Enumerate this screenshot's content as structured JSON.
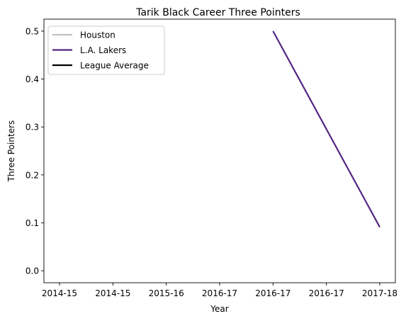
{
  "chart_data": {
    "type": "line",
    "title": "Tarik Black Career Three Pointers",
    "xlabel": "Year",
    "ylabel": "Three Pointers",
    "categories": [
      "2014-15",
      "2014-15",
      "2015-16",
      "2016-17",
      "2016-17",
      "2016-17",
      "2017-18"
    ],
    "ylim": [
      -0.025,
      0.525
    ],
    "yticks": [
      0.0,
      0.1,
      0.2,
      0.3,
      0.4,
      0.5
    ],
    "ytick_labels": [
      "0.0",
      "0.1",
      "0.2",
      "0.3",
      "0.4",
      "0.5"
    ],
    "grid": false,
    "legend_position": "top-left",
    "series": [
      {
        "name": "Houston",
        "color": "#c0c0c0",
        "values": [
          null,
          null,
          null,
          null,
          null,
          null,
          null
        ]
      },
      {
        "name": "L.A. Lakers",
        "color": "#552583",
        "values": [
          null,
          null,
          null,
          null,
          0.5,
          null,
          0.091
        ]
      },
      {
        "name": "League Average",
        "color": "#000000",
        "values": [
          null,
          null,
          null,
          null,
          null,
          null,
          null
        ]
      }
    ]
  }
}
